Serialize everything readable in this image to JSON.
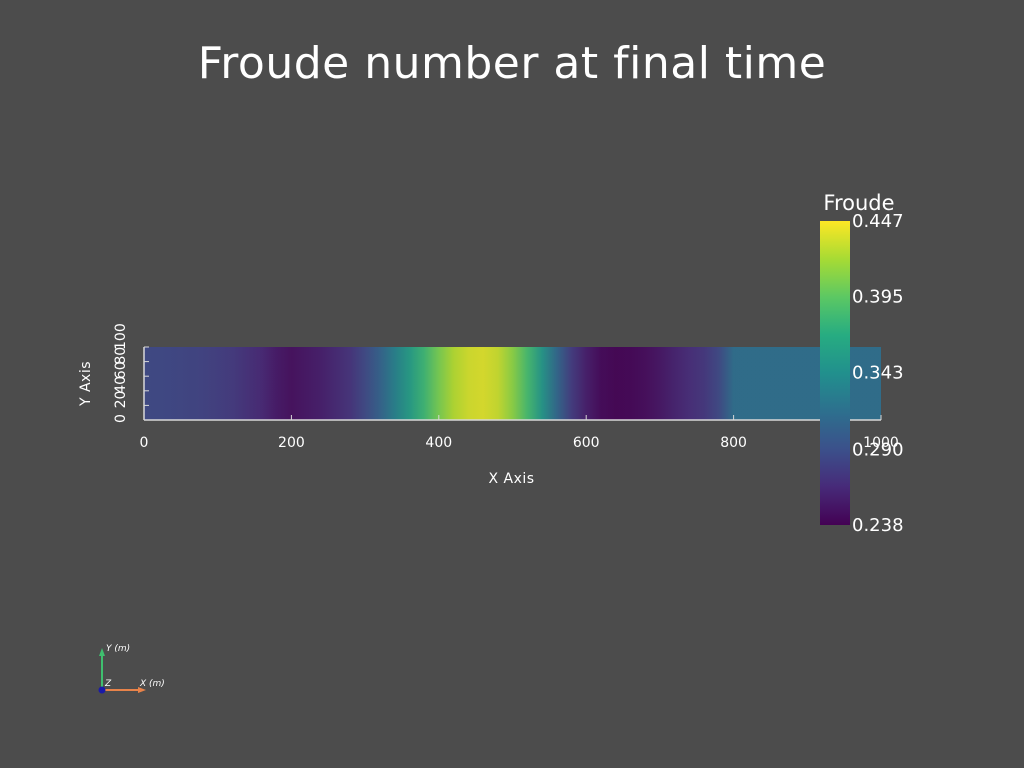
{
  "title": "Froude number at final time",
  "colors": {
    "background": "#4c4c4c",
    "axis": "#d8d8d8",
    "x_axis_arrow": "#e8834a",
    "y_axis_arrow": "#3fbf6f",
    "z_axis_dot": "#1a1aa8"
  },
  "chart_data": {
    "type": "heatmap",
    "title": "Froude number at final time",
    "xlabel": "X Axis",
    "ylabel": "Y Axis",
    "xlim": [
      0,
      1000
    ],
    "ylim": [
      0,
      100
    ],
    "x_ticks": [
      {
        "value": 0,
        "label": "0"
      },
      {
        "value": 200,
        "label": "200"
      },
      {
        "value": 400,
        "label": "400"
      },
      {
        "value": 600,
        "label": "600"
      },
      {
        "value": 800,
        "label": "800"
      },
      {
        "value": 1000,
        "label": "1000"
      }
    ],
    "y_ticks": [
      {
        "value": 0,
        "label": "0"
      },
      {
        "value": 20,
        "label": "20"
      },
      {
        "value": 40,
        "label": "40"
      },
      {
        "value": 60,
        "label": "60"
      },
      {
        "value": 80,
        "label": "80"
      },
      {
        "value": 100,
        "label": "100"
      }
    ],
    "colormap": "viridis",
    "colorbar": {
      "title": "Froude",
      "range": [
        0.238,
        0.447
      ],
      "tick_labels": [
        "0.447",
        "0.395",
        "0.343",
        "0.290",
        "0.238"
      ],
      "tick_values": [
        0.447,
        0.395,
        0.343,
        0.29,
        0.238
      ]
    },
    "x": [
      0,
      40,
      80,
      120,
      160,
      180,
      200,
      240,
      280,
      300,
      320,
      340,
      360,
      380,
      400,
      420,
      440,
      460,
      480,
      500,
      520,
      540,
      560,
      580,
      600,
      620,
      640,
      660,
      680,
      700,
      720,
      740,
      760,
      780,
      800,
      850,
      900,
      950,
      1000
    ],
    "values": [
      0.285,
      0.283,
      0.28,
      0.274,
      0.262,
      0.252,
      0.246,
      0.255,
      0.27,
      0.285,
      0.305,
      0.33,
      0.355,
      0.38,
      0.405,
      0.425,
      0.435,
      0.438,
      0.432,
      0.412,
      0.385,
      0.35,
      0.31,
      0.275,
      0.255,
      0.242,
      0.239,
      0.24,
      0.244,
      0.25,
      0.258,
      0.265,
      0.272,
      0.285,
      0.315,
      0.316,
      0.316,
      0.316,
      0.316
    ]
  },
  "orientation": {
    "x_label": "X (m)",
    "y_label": "Y (m)",
    "z_label": "Z"
  }
}
